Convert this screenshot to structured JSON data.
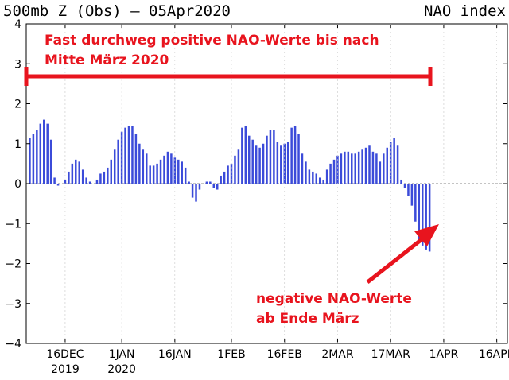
{
  "title_left": "500mb Z (Obs) — 05Apr2020",
  "title_right": "NAO index",
  "chart_data": {
    "type": "bar",
    "title": "500mb Z (Obs) — 05Apr2020",
    "subtitle": "NAO index",
    "ylim": [
      -4,
      4
    ],
    "yticks": [
      4,
      3,
      2,
      1,
      0,
      -1,
      -2,
      -3,
      -4
    ],
    "ytick_labels": [
      "4",
      "3",
      "2",
      "1",
      "0",
      "−1",
      "−2",
      "−3",
      "−4"
    ],
    "x_start": "2019-12-05",
    "x_end": "2020-04-19",
    "xticks": [
      {
        "date": "2019-12-16",
        "label": "16DEC",
        "year": "2019"
      },
      {
        "date": "2020-01-01",
        "label": "1JAN",
        "year": "2020"
      },
      {
        "date": "2020-01-16",
        "label": "16JAN",
        "year": ""
      },
      {
        "date": "2020-02-01",
        "label": "1FEB",
        "year": ""
      },
      {
        "date": "2020-02-16",
        "label": "16FEB",
        "year": ""
      },
      {
        "date": "2020-03-02",
        "label": "2MAR",
        "year": ""
      },
      {
        "date": "2020-03-17",
        "label": "17MAR",
        "year": ""
      },
      {
        "date": "2020-04-01",
        "label": "1APR",
        "year": ""
      },
      {
        "date": "2020-04-16",
        "label": "16APR",
        "year": ""
      }
    ],
    "first_bar_date": "2019-12-06",
    "values": [
      1.15,
      1.25,
      1.35,
      1.5,
      1.6,
      1.5,
      1.1,
      0.15,
      -0.05,
      0.0,
      0.1,
      0.3,
      0.5,
      0.6,
      0.55,
      0.35,
      0.15,
      0.05,
      0.0,
      0.1,
      0.25,
      0.3,
      0.4,
      0.6,
      0.85,
      1.1,
      1.3,
      1.4,
      1.45,
      1.45,
      1.25,
      1.0,
      0.85,
      0.75,
      0.45,
      0.45,
      0.5,
      0.6,
      0.7,
      0.8,
      0.75,
      0.65,
      0.6,
      0.55,
      0.4,
      0.05,
      -0.35,
      -0.45,
      -0.15,
      0.0,
      0.05,
      0.05,
      -0.1,
      -0.15,
      0.2,
      0.3,
      0.45,
      0.5,
      0.7,
      0.85,
      1.4,
      1.45,
      1.2,
      1.1,
      0.95,
      0.9,
      1.0,
      1.2,
      1.35,
      1.35,
      1.05,
      0.95,
      1.0,
      1.05,
      1.4,
      1.45,
      1.25,
      0.75,
      0.55,
      0.35,
      0.3,
      0.25,
      0.15,
      0.1,
      0.35,
      0.5,
      0.6,
      0.7,
      0.75,
      0.8,
      0.8,
      0.75,
      0.75,
      0.8,
      0.85,
      0.9,
      0.95,
      0.8,
      0.75,
      0.55,
      0.75,
      0.9,
      1.05,
      1.15,
      0.95,
      0.1,
      -0.1,
      -0.3,
      -0.55,
      -0.95,
      -1.4,
      -1.55,
      -1.65,
      -1.7
    ],
    "bar_color": "#3b4bd9",
    "zero_line_color": "#888888",
    "annotations": {
      "top_text_line1": "Fast durchweg positive NAO-Werte bis nach",
      "top_text_line2": "Mitte März 2020",
      "bottom_text_line1": "negative NAO-Werte",
      "bottom_text_line2": "ab Ende März",
      "annotation_color": "#e8141e"
    }
  }
}
